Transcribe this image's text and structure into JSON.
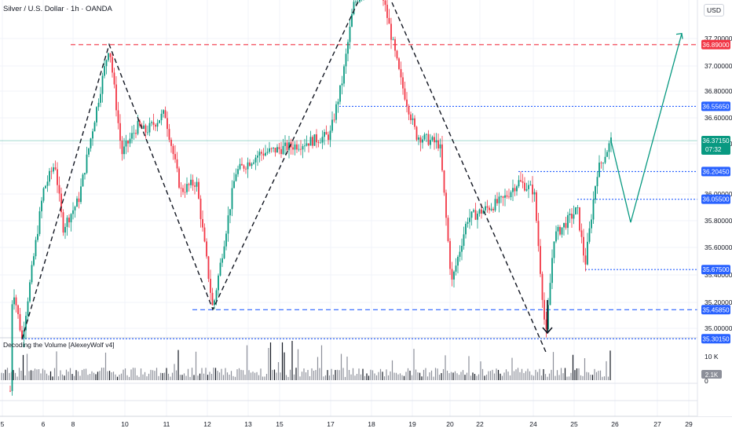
{
  "header": {
    "symbol_title": "Silver / U.S. Dollar · 1h · OANDA",
    "currency": "USD"
  },
  "indicator": {
    "title": "Decoding the Volume [AlexeyWolf v4]",
    "scale_label": "10 K",
    "last_value": "2.1K",
    "zero_label": "0"
  },
  "colors": {
    "up": "#089981",
    "down": "#f23645",
    "blue_level": "#2962ff",
    "red_level": "#f23645",
    "projection": "#089981",
    "price_badge": "#089981"
  },
  "price_axis": {
    "ticks": [
      "37.20000",
      "37.00000",
      "36.80000",
      "36.60000",
      "36.40000",
      "36.00000",
      "35.80000",
      "35.60000",
      "35.40000",
      "35.20000",
      "35.00000"
    ]
  },
  "time_axis": {
    "labels": [
      "5",
      "6",
      "8",
      "10",
      "11",
      "12",
      "13",
      "15",
      "17",
      "18",
      "19",
      "20",
      "22",
      "24",
      "25",
      "26",
      "27",
      "29"
    ]
  },
  "levels": [
    {
      "label": "37.31800",
      "style": "blue"
    },
    {
      "label": "36.89000",
      "style": "red"
    },
    {
      "label": "36.55650",
      "style": "blue"
    },
    {
      "label": "36.20450",
      "style": "blue"
    },
    {
      "label": "36.05500",
      "style": "blue"
    },
    {
      "label": "35.67500",
      "style": "blue"
    },
    {
      "label": "35.45850",
      "style": "blue"
    },
    {
      "label": "35.30150",
      "style": "blue"
    }
  ],
  "current_price": {
    "label": "36.37150",
    "countdown": "07:32"
  },
  "chart_data": {
    "type": "candlestick",
    "symbol": "Silver / U.S. Dollar",
    "timeframe": "1h",
    "ylim": [
      34.96,
      37.36
    ],
    "key_points": [
      {
        "name": "start low",
        "price": 35.3
      },
      {
        "name": "first high",
        "price": 36.89
      },
      {
        "name": "second low",
        "price": 35.46
      },
      {
        "name": "top",
        "price": 37.32
      },
      {
        "name": "bottom",
        "price": 35.23
      },
      {
        "name": "last",
        "price": 36.37
      }
    ],
    "projection_path": [
      36.37,
      35.93,
      36.95
    ]
  }
}
